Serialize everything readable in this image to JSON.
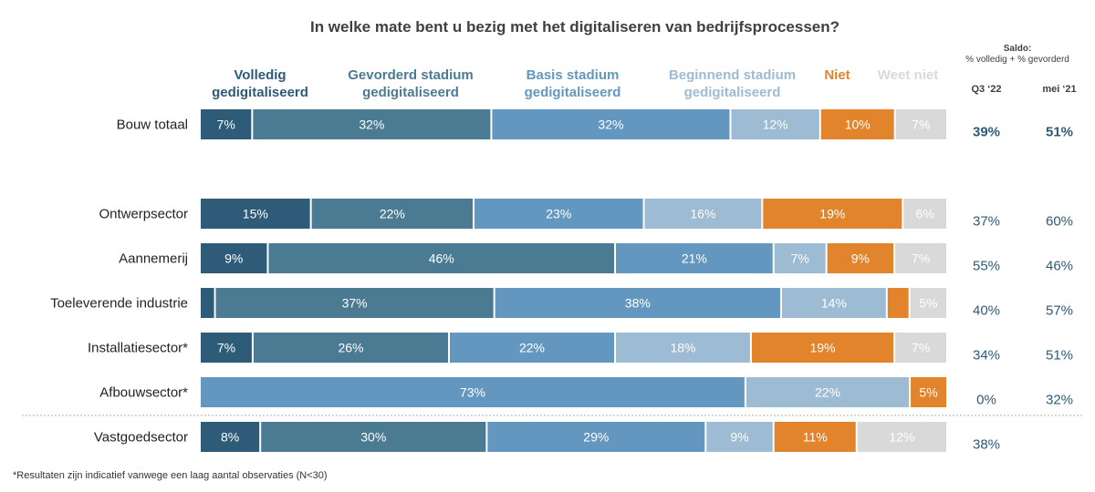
{
  "title": "In welke mate bent u bezig met het digitaliseren van bedrijfsprocessen?",
  "saldo": {
    "heading": "Saldo:",
    "subheading": "% volledig + % gevorderd",
    "col1": "Q3 ‘22",
    "col2": "mei ‘21"
  },
  "legend": [
    {
      "line1": "Volledig",
      "line2": "gedigitaliseerd",
      "color": "#2d5b78"
    },
    {
      "line1": "Gevorderd stadium",
      "line2": "gedigitaliseerd",
      "color": "#4a7b93"
    },
    {
      "line1": "Basis stadium",
      "line2": "gedigitaliseerd",
      "color": "#6497bf"
    },
    {
      "line1": "Beginnend stadium",
      "line2": "gedigitaliseerd",
      "color": "#9dbbd2"
    },
    {
      "line1": "Niet",
      "line2": "",
      "color": "#e1842c"
    },
    {
      "line1": "Weet niet",
      "line2": "",
      "color": "#d9d9d9"
    }
  ],
  "footnote": "*Resultaten zijn indicatief vanwege een laag aantal observaties (N<30)",
  "chart_data": {
    "type": "bar",
    "orientation": "horizontal",
    "stacked": true,
    "xlim": [
      0,
      100
    ],
    "colors": [
      "#2d5b78",
      "#4a7b93",
      "#6497bf",
      "#9dbbd2",
      "#e1842c",
      "#d9d9d9"
    ],
    "label_colors": [
      "#ffffff",
      "#ffffff",
      "#ffffff",
      "#ffffff",
      "#ffffff",
      "#ffffff"
    ],
    "series_names": [
      "Volledig gedigitaliseerd",
      "Gevorderd stadium gedigitaliseerd",
      "Basis stadium gedigitaliseerd",
      "Beginnend stadium gedigitaliseerd",
      "Niet",
      "Weet niet"
    ],
    "categories": [
      "Bouw totaal",
      "Ontwerpsector",
      "Aannemerij",
      "Toeleverende industrie",
      "Installatiesector*",
      "Afbouwsector*",
      "Vastgoedsector"
    ],
    "values": [
      [
        7,
        32,
        32,
        12,
        10,
        7
      ],
      [
        15,
        22,
        23,
        16,
        19,
        6
      ],
      [
        9,
        46,
        21,
        7,
        9,
        7
      ],
      [
        2,
        37,
        38,
        14,
        3,
        5
      ],
      [
        7,
        26,
        22,
        18,
        19,
        7
      ],
      [
        0,
        0,
        73,
        22,
        5,
        0
      ],
      [
        8,
        30,
        29,
        9,
        11,
        12
      ]
    ],
    "data_labels": [
      [
        "7%",
        "32%",
        "32%",
        "12%",
        "10%",
        "7%"
      ],
      [
        "15%",
        "22%",
        "23%",
        "16%",
        "19%",
        "6%"
      ],
      [
        "9%",
        "46%",
        "21%",
        "7%",
        "9%",
        "7%"
      ],
      [
        "",
        "37%",
        "38%",
        "14%",
        "",
        "5%"
      ],
      [
        "7%",
        "26%",
        "22%",
        "18%",
        "19%",
        "7%"
      ],
      [
        "",
        "",
        "73%",
        "22%",
        "5%",
        ""
      ],
      [
        "8%",
        "30%",
        "29%",
        "9%",
        "11%",
        "12%"
      ]
    ],
    "saldo_q3_22": [
      "39%",
      "37%",
      "55%",
      "40%",
      "34%",
      "0%",
      "38%"
    ],
    "saldo_mei_21": [
      "51%",
      "60%",
      "46%",
      "57%",
      "51%",
      "32%",
      ""
    ],
    "highlight_row": "Bouw totaal"
  }
}
